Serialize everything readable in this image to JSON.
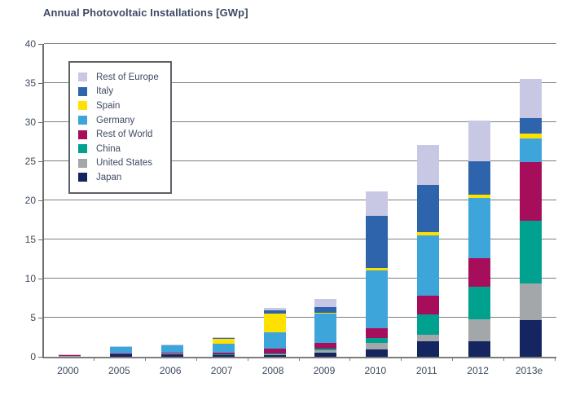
{
  "title": "Annual Photovoltaic Installations [GWp]",
  "chart_data": {
    "type": "bar",
    "stacked": true,
    "title": "Annual Photovoltaic Installations [GWp]",
    "xlabel": "",
    "ylabel": "GWp",
    "ylim": [
      0,
      40
    ],
    "yticks": [
      0,
      5,
      10,
      15,
      20,
      25,
      30,
      35,
      40
    ],
    "grid": true,
    "legend_position": "upper-left-inside",
    "categories": [
      "2000",
      "2005",
      "2006",
      "2007",
      "2008",
      "2009",
      "2010",
      "2011",
      "2012",
      "2013e"
    ],
    "series": [
      {
        "name": "Japan",
        "color": "#152560",
        "values": [
          0.11,
          0.3,
          0.3,
          0.21,
          0.25,
          0.5,
          0.95,
          2.0,
          2.0,
          4.7
        ]
      },
      {
        "name": "United States",
        "color": "#a4a7a9",
        "values": [
          0.02,
          0.1,
          0.1,
          0.1,
          0.15,
          0.3,
          0.85,
          0.8,
          2.8,
          4.7
        ]
      },
      {
        "name": "China",
        "color": "#00a18f",
        "values": [
          0.0,
          0.0,
          0.0,
          0.02,
          0.05,
          0.2,
          0.6,
          2.6,
          4.2,
          8.0
        ]
      },
      {
        "name": "Rest of World",
        "color": "#a60e5c",
        "values": [
          0.03,
          0.05,
          0.1,
          0.22,
          0.55,
          0.75,
          1.2,
          2.4,
          3.6,
          7.5
        ]
      },
      {
        "name": "Germany",
        "color": "#3ea5da",
        "values": [
          0.12,
          0.9,
          1.0,
          1.1,
          2.1,
          3.8,
          7.4,
          7.7,
          7.7,
          3.0
        ]
      },
      {
        "name": "Spain",
        "color": "#ffe100",
        "values": [
          0.0,
          0.02,
          0.05,
          0.65,
          2.45,
          0.1,
          0.4,
          0.4,
          0.4,
          0.6
        ]
      },
      {
        "name": "Italy",
        "color": "#2d64ab",
        "values": [
          0.0,
          0.0,
          0.02,
          0.1,
          0.4,
          0.75,
          6.6,
          6.1,
          4.3,
          2.0
        ]
      },
      {
        "name": "Rest of Europe",
        "color": "#c9c8e4",
        "values": [
          0.02,
          0.03,
          0.03,
          0.1,
          0.3,
          1.0,
          3.1,
          5.1,
          5.2,
          5.0
        ]
      }
    ],
    "legend_entries": [
      "Rest of Europe",
      "Italy",
      "Spain",
      "Germany",
      "Rest of World",
      "China",
      "United States",
      "Japan"
    ]
  }
}
